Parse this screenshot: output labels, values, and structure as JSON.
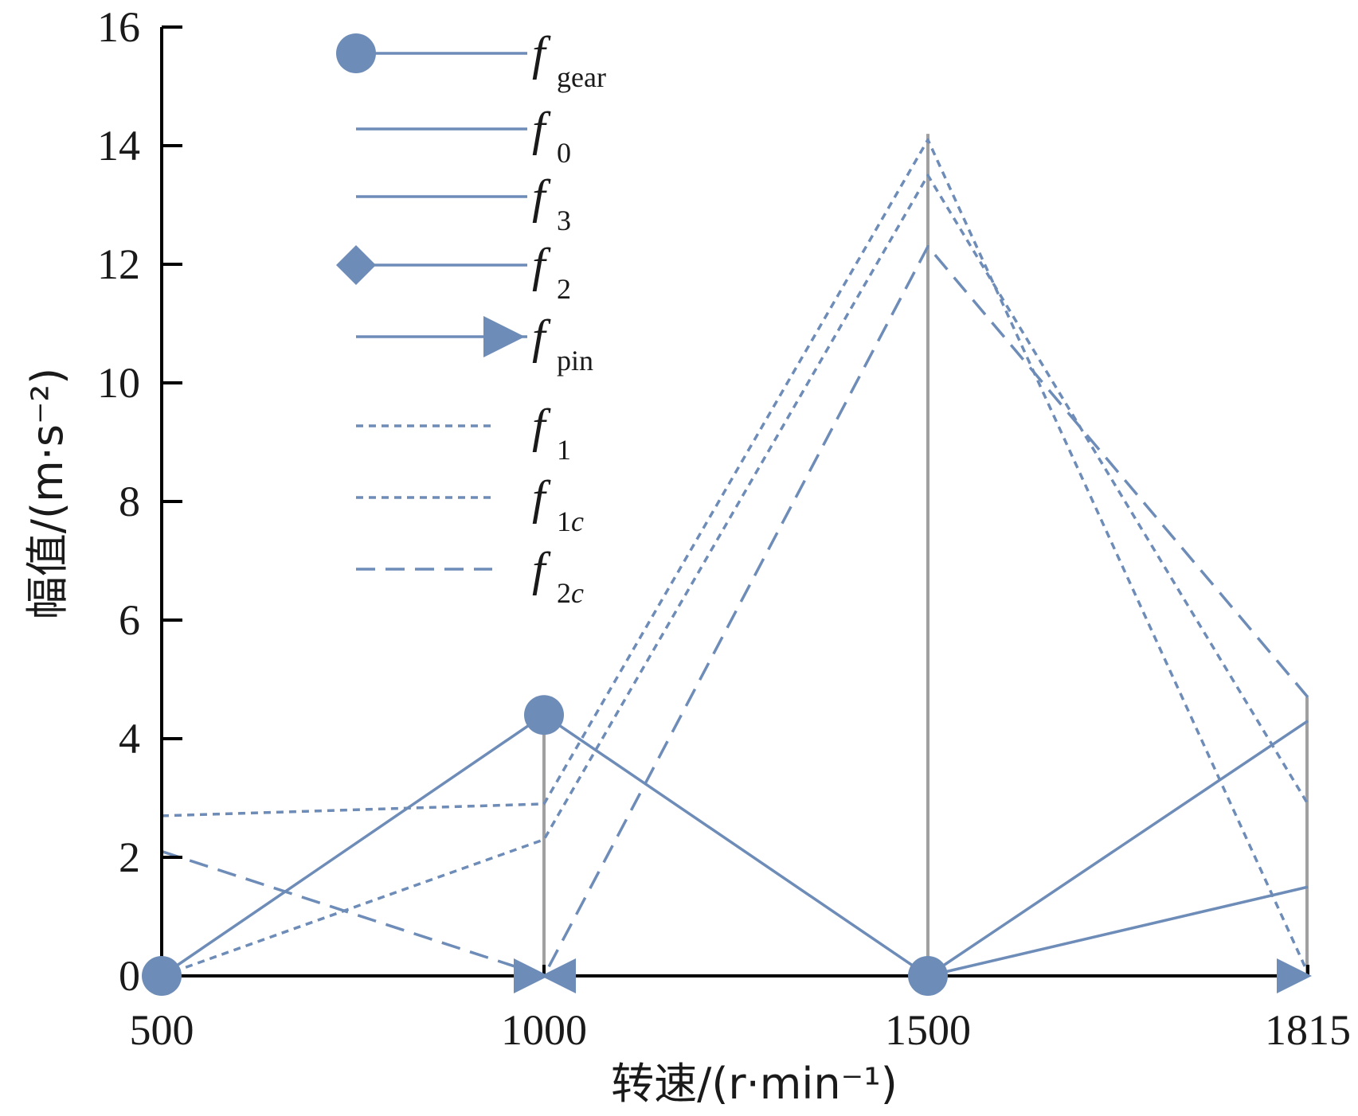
{
  "chart_data": {
    "type": "line",
    "xlabel": "转速/(r·min⁻¹)",
    "ylabel": "幅值/(m·s⁻²)",
    "x_categories": [
      "500",
      "1000",
      "1500",
      "1815"
    ],
    "ylim": [
      0,
      16
    ],
    "y_ticks": [
      "0",
      "2",
      "4",
      "6",
      "8",
      "10",
      "12",
      "14",
      "16"
    ],
    "grid": false,
    "legend_position": "top-left",
    "series": [
      {
        "name": "f",
        "sub": "gear",
        "style": "solid",
        "marker": "circle",
        "values": [
          0,
          4.4,
          0,
          0
        ]
      },
      {
        "name": "f",
        "sub": "0",
        "style": "solid",
        "marker": "none",
        "values": [
          0,
          0,
          0,
          4.3
        ]
      },
      {
        "name": "f",
        "sub": "3",
        "style": "solid",
        "marker": "none",
        "values": [
          0,
          0,
          0,
          1.5
        ]
      },
      {
        "name": "f",
        "sub": "2",
        "style": "solid",
        "marker": "diamond",
        "values": [
          0,
          0,
          0,
          0
        ]
      },
      {
        "name": "f",
        "sub": "pin",
        "style": "solid",
        "marker": "triangle",
        "values": [
          0,
          0,
          0,
          0
        ]
      },
      {
        "name": "f",
        "sub": "1",
        "style": "dotted",
        "marker": "none",
        "values": [
          2.7,
          2.9,
          14.1,
          0.05
        ]
      },
      {
        "name": "f",
        "sub": "1c",
        "style": "dotted",
        "marker": "none",
        "values": [
          0,
          2.3,
          13.5,
          2.9
        ]
      },
      {
        "name": "f",
        "sub": "2c",
        "style": "dashed",
        "marker": "none",
        "values": [
          2.1,
          0,
          12.3,
          4.7
        ]
      }
    ],
    "stems": [
      {
        "category": "1000",
        "value": 4.4
      },
      {
        "category": "1500",
        "value": 14.2
      },
      {
        "category": "1815",
        "value": 4.7
      }
    ],
    "colors": {
      "series": "#6e8cb8",
      "stem": "#a0a0a0",
      "axis": "#000000"
    }
  }
}
